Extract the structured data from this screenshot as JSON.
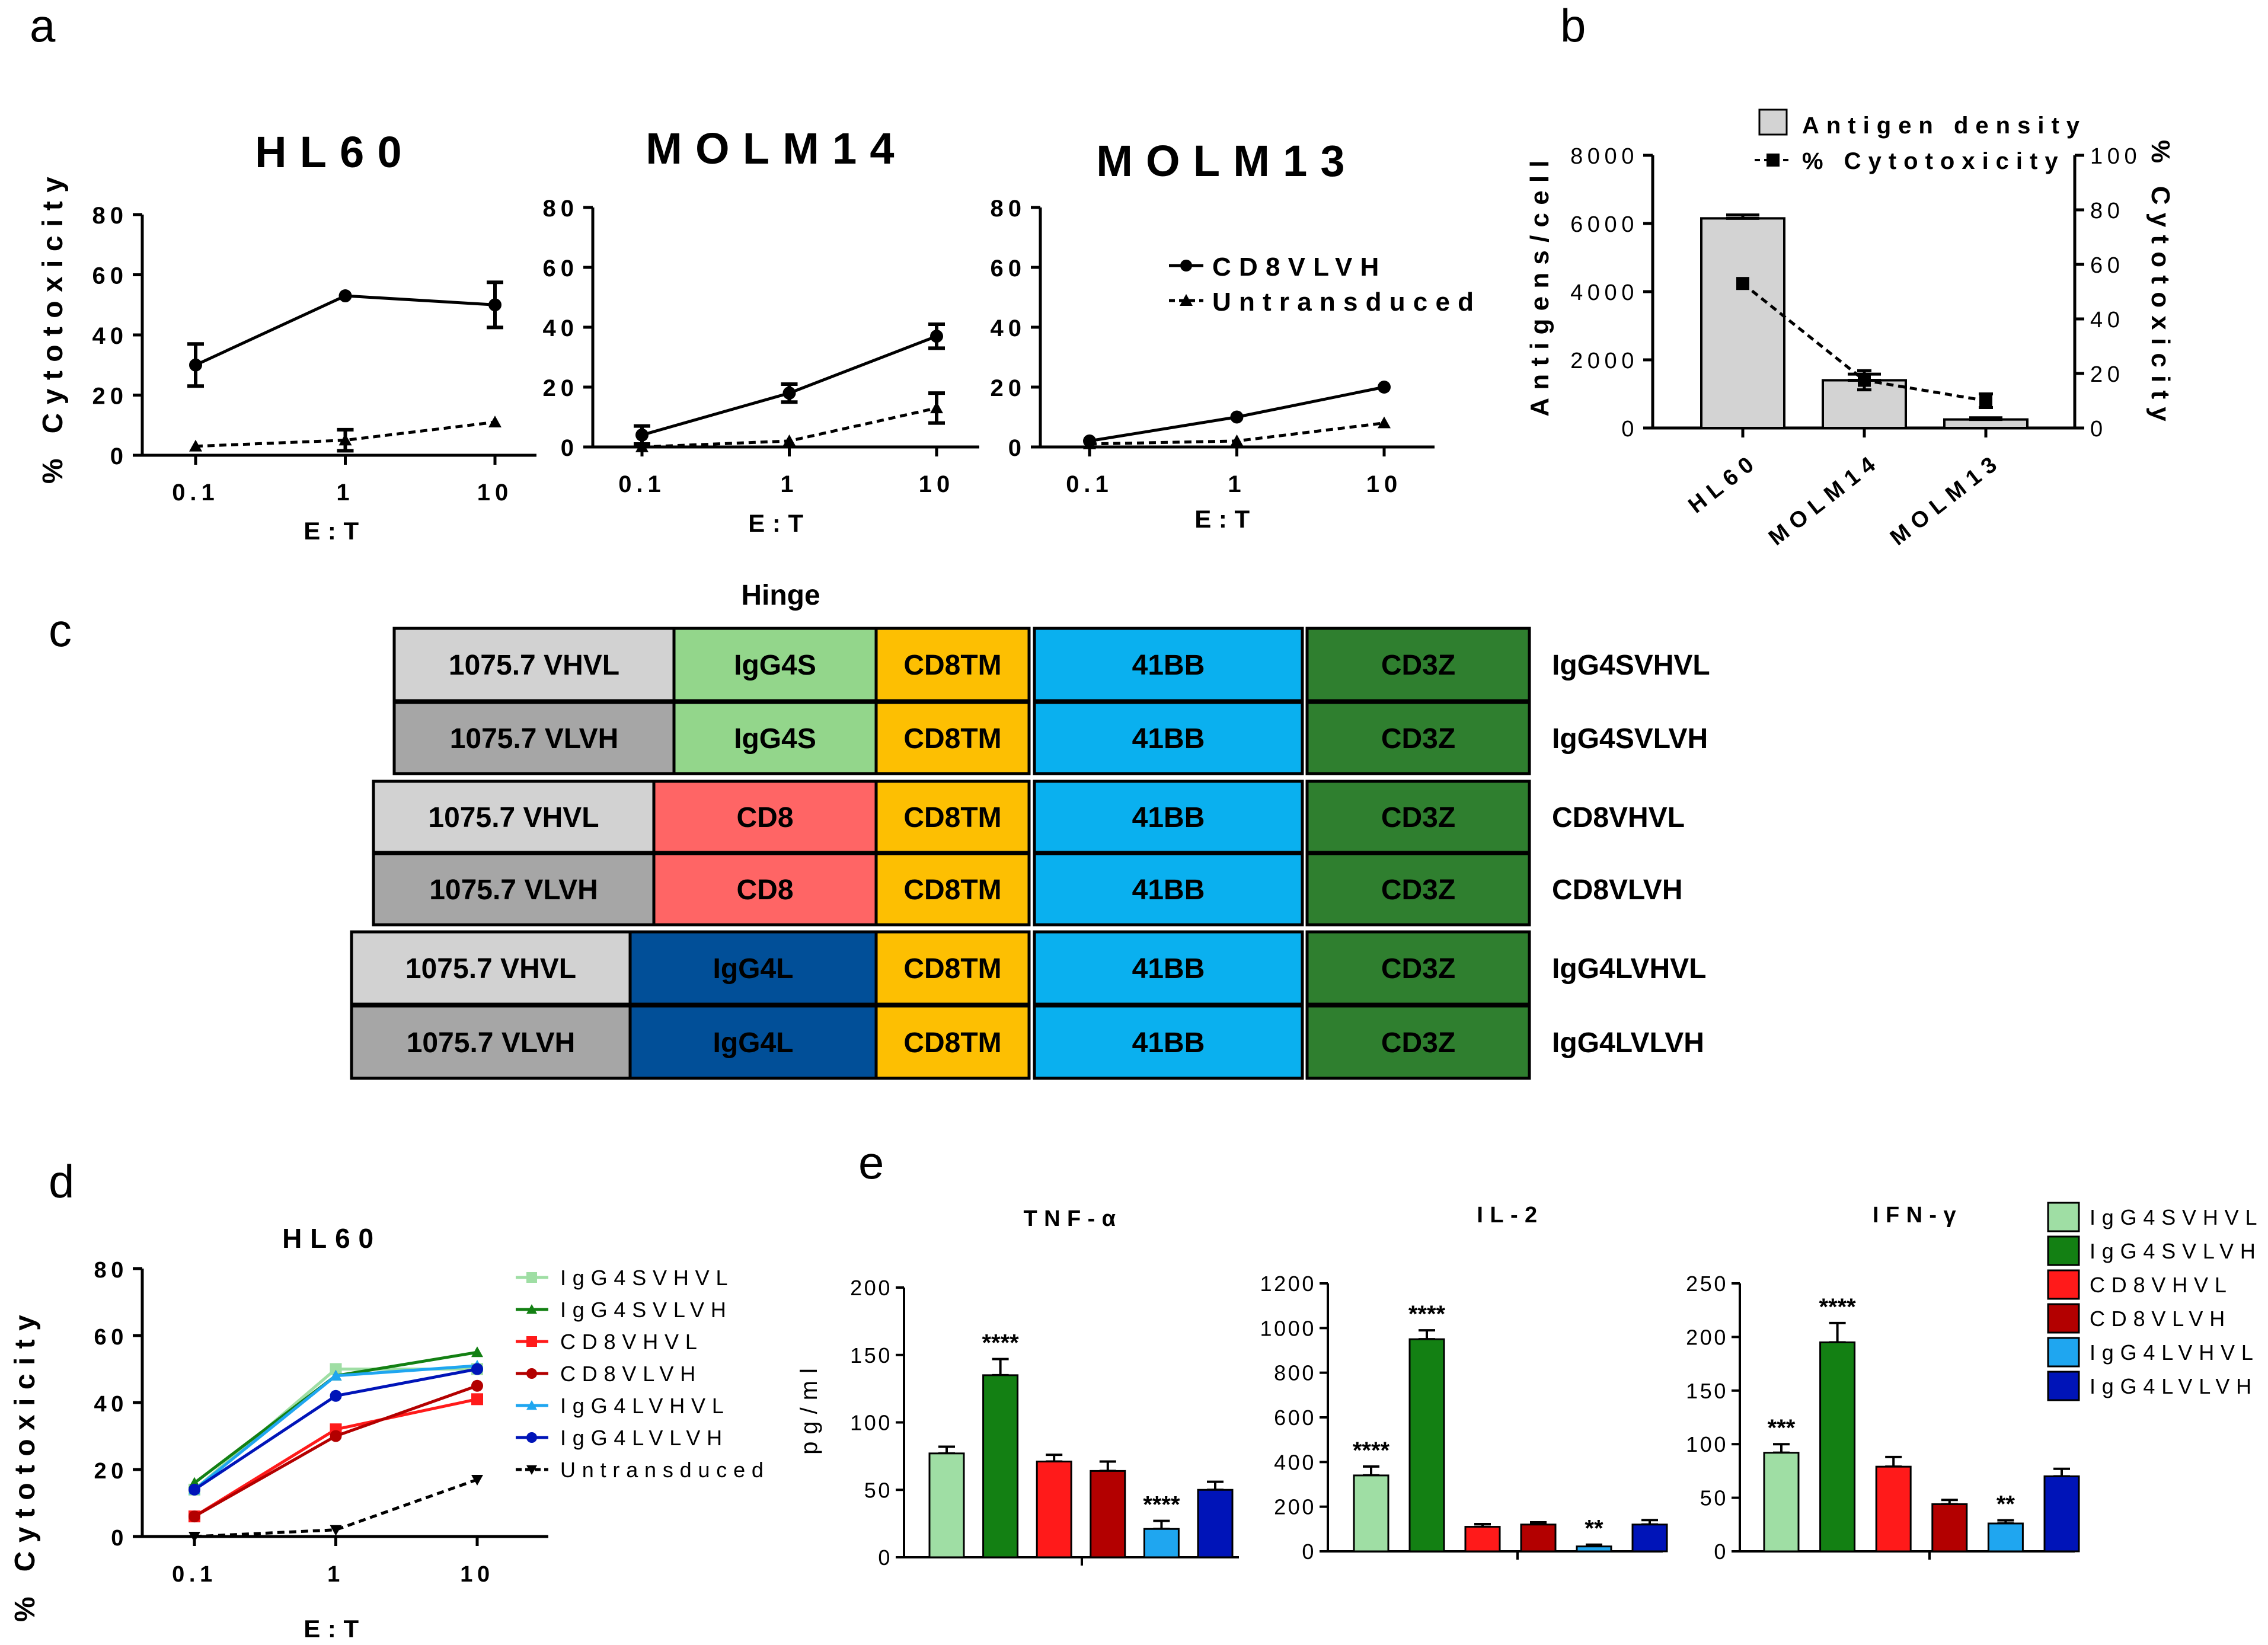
{
  "panel_letters": [
    "a",
    "b",
    "c",
    "d",
    "e"
  ],
  "colors": {
    "IgG4SVHVL": "#9fdea4",
    "IgG4SVLVH": "#138013",
    "CD8VHVL": "#ff1a1a",
    "CD8VLVH": "#b30000",
    "IgG4LVHVL": "#1fa6f0",
    "IgG4LVLVH": "#0014b8",
    "Untransduced": "#000000"
  },
  "chart_data": [
    {
      "id": "a1",
      "type": "line",
      "title": "HL60",
      "xlabel": "E:T",
      "ylabel": "% Cytotoxicity",
      "x_scale": "log",
      "x": [
        0.1,
        1,
        10
      ],
      "x_ticks": [
        "0.1",
        "1",
        "10"
      ],
      "ylim": [
        0,
        80
      ],
      "y_ticks": [
        "0",
        "20",
        "40",
        "60",
        "80"
      ],
      "series": [
        {
          "name": "",
          "style": "solid-circle",
          "values": [
            30,
            53,
            50
          ],
          "err": [
            7,
            0,
            7.5
          ]
        },
        {
          "name": "",
          "style": "dashed-triangle",
          "values": [
            3,
            5,
            11
          ],
          "err": [
            0,
            3.5,
            0
          ]
        }
      ]
    },
    {
      "id": "a2",
      "type": "line",
      "title": "MOLM14",
      "xlabel": "E:T",
      "ylabel": "",
      "x_scale": "log",
      "x": [
        0.1,
        1,
        10
      ],
      "x_ticks": [
        "0.1",
        "1",
        "10"
      ],
      "ylim": [
        0,
        80
      ],
      "y_ticks": [
        "0",
        "20",
        "40",
        "60",
        "80"
      ],
      "series": [
        {
          "name": "",
          "style": "solid-circle",
          "values": [
            4,
            18,
            37
          ],
          "err": [
            3,
            3,
            4
          ]
        },
        {
          "name": "",
          "style": "dashed-triangle",
          "values": [
            0,
            2,
            13
          ],
          "err": [
            0,
            0,
            5
          ]
        }
      ]
    },
    {
      "id": "a3",
      "type": "line",
      "title": "MOLM13",
      "xlabel": "E:T",
      "ylabel": "",
      "x_scale": "log",
      "x": [
        0.1,
        1,
        10
      ],
      "x_ticks": [
        "0.1",
        "1",
        "10"
      ],
      "ylim": [
        0,
        80
      ],
      "y_ticks": [
        "0",
        "20",
        "40",
        "60",
        "80"
      ],
      "legend": [
        "CD8VLVH",
        "Untransduced"
      ],
      "series": [
        {
          "name": "CD8VLVH",
          "style": "solid-circle",
          "values": [
            2,
            10,
            20
          ],
          "err": [
            0,
            0,
            0
          ]
        },
        {
          "name": "Untransduced",
          "style": "dashed-triangle",
          "values": [
            1,
            2,
            8
          ],
          "err": [
            0,
            0,
            0
          ]
        }
      ]
    },
    {
      "id": "b",
      "type": "bar",
      "title": "",
      "categories": [
        "HL60",
        "MOLM14",
        "MOLM13"
      ],
      "ylabel": "Antigens/cell",
      "ylim": [
        0,
        8000
      ],
      "y_ticks": [
        "0",
        "2000",
        "4000",
        "6000",
        "8000"
      ],
      "y2label": "% Cytotoxicity",
      "y2lim": [
        0,
        100
      ],
      "y2_ticks": [
        "0",
        "20",
        "40",
        "60",
        "80",
        "100"
      ],
      "legend": [
        "Antigen density",
        "% Cytotoxicity"
      ],
      "series": [
        {
          "name": "Antigen density",
          "type": "bar",
          "axis": "left",
          "values": [
            6150,
            1400,
            250
          ],
          "err": [
            100,
            180,
            50
          ]
        },
        {
          "name": "% Cytotoxicity",
          "type": "line",
          "axis": "right",
          "values": [
            53,
            17.5,
            10
          ],
          "err": [
            0,
            3.5,
            2.5
          ]
        }
      ]
    },
    {
      "id": "d",
      "type": "line",
      "title": "HL60",
      "xlabel": "E:T",
      "ylabel": "% Cytotoxicity",
      "x_scale": "log",
      "x": [
        0.1,
        1,
        10
      ],
      "x_ticks": [
        "0.1",
        "1",
        "10"
      ],
      "ylim": [
        0,
        80
      ],
      "y_ticks": [
        "0",
        "20",
        "40",
        "60",
        "80"
      ],
      "legend": [
        "IgG4SVHVL",
        "IgG4SVLVH",
        "CD8VHVL",
        "CD8VLVH",
        "IgG4LVHVL",
        "IgG4LVLVH",
        "Untransduced"
      ],
      "series": [
        {
          "name": "IgG4SVHVL",
          "values": [
            14,
            50,
            50
          ]
        },
        {
          "name": "IgG4SVLVH",
          "values": [
            16,
            48,
            55
          ]
        },
        {
          "name": "CD8VHVL",
          "values": [
            6,
            32,
            41
          ]
        },
        {
          "name": "CD8VLVH",
          "values": [
            6,
            30,
            45
          ]
        },
        {
          "name": "IgG4LVHVL",
          "values": [
            14,
            48,
            51
          ]
        },
        {
          "name": "IgG4LVLVH",
          "values": [
            14,
            42,
            50
          ]
        },
        {
          "name": "Untransduced",
          "values": [
            0,
            2,
            17
          ]
        }
      ]
    },
    {
      "id": "e1",
      "type": "bar",
      "title": "TNF-α",
      "ylabel": "pg/ml",
      "ylim": [
        0,
        200
      ],
      "y_ticks": [
        "0",
        "50",
        "100",
        "150",
        "200"
      ],
      "categories": [
        "IgG4SVHVL",
        "IgG4SVLVH",
        "CD8VHVL",
        "CD8VLVH",
        "IgG4LVHVL",
        "IgG4LVLVH"
      ],
      "values": [
        77,
        135,
        71,
        64,
        21,
        50
      ],
      "err": [
        5,
        12,
        5,
        7,
        6,
        6
      ],
      "labels": [
        "",
        "****",
        "",
        "",
        "****",
        ""
      ]
    },
    {
      "id": "e2",
      "type": "bar",
      "title": "IL-2",
      "ylabel": "",
      "ylim": [
        0,
        1200
      ],
      "y_ticks": [
        "0",
        "200",
        "400",
        "600",
        "800",
        "1000",
        "1200"
      ],
      "categories": [
        "IgG4SVHVL",
        "IgG4SVLVH",
        "CD8VHVL",
        "CD8VLVH",
        "IgG4LVHVL",
        "IgG4LVLVH"
      ],
      "values": [
        340,
        950,
        110,
        120,
        22,
        120
      ],
      "err": [
        40,
        40,
        12,
        10,
        8,
        20
      ],
      "labels": [
        "****",
        "****",
        "",
        "",
        "**",
        ""
      ]
    },
    {
      "id": "e3",
      "type": "bar",
      "title": "IFN-γ",
      "ylabel": "",
      "ylim": [
        0,
        250
      ],
      "y_ticks": [
        "0",
        "50",
        "100",
        "150",
        "200",
        "250"
      ],
      "categories": [
        "IgG4SVHVL",
        "IgG4SVLVH",
        "CD8VHVL",
        "CD8VLVH",
        "IgG4LVHVL",
        "IgG4LVLVH"
      ],
      "values": [
        92,
        195,
        79,
        44,
        26,
        70
      ],
      "err": [
        8,
        18,
        9,
        4,
        3,
        7
      ],
      "labels": [
        "***",
        "****",
        "",
        "",
        "**",
        ""
      ],
      "legend": [
        "IgG4SVHVL",
        "IgG4SVLVH",
        "CD8VHVL",
        "CD8VLVH",
        "IgG4LVHVL",
        "IgG4LVLVH"
      ]
    }
  ],
  "diagram": {
    "hinge_label": "Hinge",
    "rows": [
      {
        "name": "IgG4SVHVL",
        "scfv": "1075.7 VHVL",
        "hinge": "IgG4S",
        "tm": "CD8TM",
        "costim": "41BB",
        "signal": "CD3Z"
      },
      {
        "name": "IgG4SVLVH",
        "scfv": "1075.7 VLVH",
        "hinge": "IgG4S",
        "tm": "CD8TM",
        "costim": "41BB",
        "signal": "CD3Z"
      },
      {
        "name": "CD8VHVL",
        "scfv": "1075.7 VHVL",
        "hinge": "CD8",
        "tm": "CD8TM",
        "costim": "41BB",
        "signal": "CD3Z"
      },
      {
        "name": "CD8VLVH",
        "scfv": "1075.7 VLVH",
        "hinge": "CD8",
        "tm": "CD8TM",
        "costim": "41BB",
        "signal": "CD3Z"
      },
      {
        "name": "IgG4LVHVL",
        "scfv": "1075.7 VHVL",
        "hinge": "IgG4L",
        "tm": "CD8TM",
        "costim": "41BB",
        "signal": "CD3Z"
      },
      {
        "name": "IgG4LVLVH",
        "scfv": "1075.7 VLVH",
        "hinge": "IgG4L",
        "tm": "CD8TM",
        "costim": "41BB",
        "signal": "CD3Z"
      }
    ]
  }
}
